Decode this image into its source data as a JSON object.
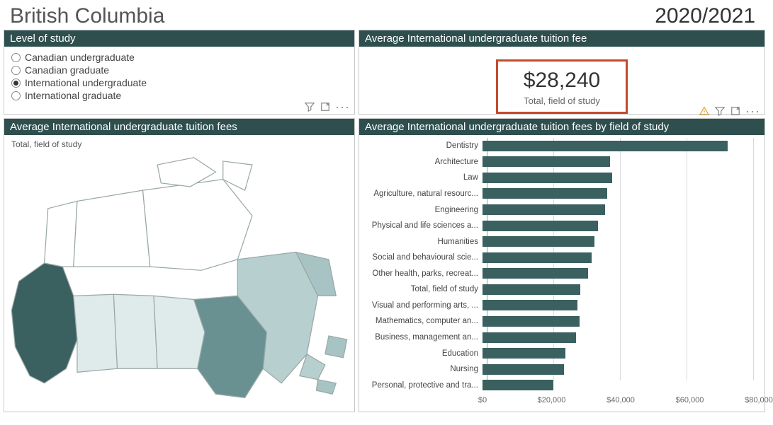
{
  "header": {
    "title": "British Columbia",
    "year": "2020/2021"
  },
  "colors": {
    "panel_header_bg": "#2f4f4f",
    "panel_header_fg": "#ffffff",
    "panel_border": "#c8c8c8",
    "kpi_border": "#c44a2d",
    "bar_fill": "#3a6060",
    "gridline": "#d9d9d9",
    "gridline_zero": "#9a9a9a",
    "map_stroke": "#9aa8a8",
    "map_fill_light": "#dfeaea",
    "map_fill_none": "#ffffff",
    "map_fill_mid": "#b7cfcf",
    "map_fill_dark": "#6a9191",
    "map_fill_dark2": "#3a6060",
    "map_fill_mid2": "#a7c3c3"
  },
  "panels": {
    "level": {
      "title": "Level of study",
      "options": [
        {
          "label": "Canadian undergraduate",
          "selected": false
        },
        {
          "label": "Canadian graduate",
          "selected": false
        },
        {
          "label": "International undergraduate",
          "selected": true
        },
        {
          "label": "International graduate",
          "selected": false
        }
      ]
    },
    "kpi": {
      "title": "Average International undergraduate tuition fee",
      "value": "$28,240",
      "subtitle": "Total, field of study"
    },
    "map": {
      "title": "Average International undergraduate tuition fees",
      "label": "Total, field of study"
    },
    "chart": {
      "title": "Average International undergraduate tuition fees by field of study",
      "type": "bar",
      "x_min": 0,
      "x_max": 80000,
      "x_tick_step": 20000,
      "x_ticks": [
        "$0",
        "$20,000",
        "$40,000",
        "$60,000",
        "$80,000"
      ],
      "bar_color": "#3a6060",
      "label_fontsize": 11.5,
      "tick_fontsize": 11,
      "data": [
        {
          "label": "Dentistry",
          "value": 71000
        },
        {
          "label": "Architecture",
          "value": 37000
        },
        {
          "label": "Law",
          "value": 37500
        },
        {
          "label": "Agriculture, natural resourc...",
          "value": 36000
        },
        {
          "label": "Engineering",
          "value": 35500
        },
        {
          "label": "Physical and life sciences a...",
          "value": 33500
        },
        {
          "label": "Humanities",
          "value": 32500
        },
        {
          "label": "Social and behavioural scie...",
          "value": 31500
        },
        {
          "label": "Other health, parks, recreat...",
          "value": 30500
        },
        {
          "label": "Total, field of study",
          "value": 28240
        },
        {
          "label": "Visual and performing arts, ...",
          "value": 27500
        },
        {
          "label": "Mathematics, computer an...",
          "value": 28000
        },
        {
          "label": "Business, management an...",
          "value": 27000
        },
        {
          "label": "Education",
          "value": 24000
        },
        {
          "label": "Nursing",
          "value": 23500
        },
        {
          "label": "Personal, protective and tra...",
          "value": 20500
        }
      ]
    }
  },
  "icons": {
    "filter": "filter-icon",
    "focus": "focus-icon",
    "more": "more-icon",
    "warning": "warning-icon"
  }
}
